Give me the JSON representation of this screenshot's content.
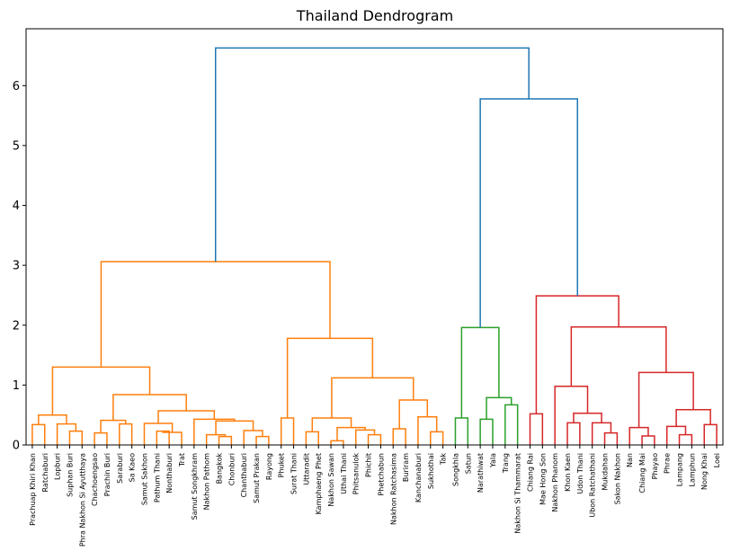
{
  "chart_data": {
    "type": "dendrogram",
    "title": "Thailand Dendrogram",
    "xlabel": "",
    "ylabel": "",
    "ylim": [
      0,
      6.95
    ],
    "yticks": [
      0,
      1,
      2,
      3,
      4,
      5,
      6
    ],
    "grid": false,
    "colors": {
      "above_threshold": "#1f77b4",
      "orange": "#ff7f0e",
      "green": "#2ca02c",
      "red": "#d62728"
    },
    "leaves": [
      "Prachuap Khiri Khan",
      "Ratchaburi",
      "Lopburi",
      "Suphan Buri",
      "Phra Nakhon Si Ayutthaya",
      "Chachoengsao",
      "Prachin Buri",
      "Saraburi",
      "Sa Kaeo",
      "Samut Sakhon",
      "Pathum Thani",
      "Nonthaburi",
      "Trat",
      "Samut Songkhram",
      "Nakhon Pathom",
      "Bangkok",
      "Chonburi",
      "Chanthaburi",
      "Samut Prakan",
      "Rayong",
      "Phuket",
      "Surat Thani",
      "Uttaradit",
      "Kamphaeng Phet",
      "Nakhon Sawan",
      "Uthai Thani",
      "Phitsanulok",
      "Phichit",
      "Phetchabun",
      "Nakhon Ratchasima",
      "Buriram",
      "Kanchanaburi",
      "Sukhothai",
      "Tak",
      "Songkhla",
      "Satun",
      "Narathiwat",
      "Yala",
      "Trang",
      "Nakhon Si Thammarat",
      "Chiang Rai",
      "Mae Hong Son",
      "Nakhon Phanom",
      "Khon Kaen",
      "Udon Thani",
      "Ubon Ratchathani",
      "Mukdahan",
      "Sakon Nakhon",
      "Nan",
      "Chiang Mai",
      "Phayao",
      "Phrae",
      "Lampang",
      "Lamphun",
      "Nong Khai",
      "Loei"
    ],
    "merges": [
      {
        "a": "L0",
        "b": "L1",
        "h": 0.34,
        "color": "orange"
      },
      {
        "a": "L3",
        "b": "L4",
        "h": 0.23,
        "color": "orange"
      },
      {
        "a": "L2",
        "b": "M1",
        "h": 0.35,
        "color": "orange"
      },
      {
        "a": "M0",
        "b": "M2",
        "h": 0.5,
        "color": "orange"
      },
      {
        "a": "L5",
        "b": "L6",
        "h": 0.2,
        "color": "orange"
      },
      {
        "a": "L7",
        "b": "L8",
        "h": 0.35,
        "color": "orange"
      },
      {
        "a": "M4",
        "b": "M5",
        "h": 0.41,
        "color": "orange"
      },
      {
        "a": "L10",
        "b": "L11",
        "h": 0.23,
        "color": "orange"
      },
      {
        "a": "M7",
        "b": "L12",
        "h": 0.21,
        "color": "orange"
      },
      {
        "a": "L9",
        "b": "M8",
        "h": 0.36,
        "color": "orange"
      },
      {
        "a": "L15",
        "b": "L16",
        "h": 0.14,
        "color": "orange"
      },
      {
        "a": "L14",
        "b": "M10",
        "h": 0.17,
        "color": "orange"
      },
      {
        "a": "L18",
        "b": "L19",
        "h": 0.14,
        "color": "orange"
      },
      {
        "a": "L17",
        "b": "M12",
        "h": 0.24,
        "color": "orange"
      },
      {
        "a": "M11",
        "b": "M13",
        "h": 0.4,
        "color": "orange"
      },
      {
        "a": "L13",
        "b": "M14",
        "h": 0.43,
        "color": "orange"
      },
      {
        "a": "M9",
        "b": "M15",
        "h": 0.57,
        "color": "orange"
      },
      {
        "a": "M6",
        "b": "M16",
        "h": 0.84,
        "color": "orange"
      },
      {
        "a": "M3",
        "b": "M17",
        "h": 1.3,
        "color": "orange"
      },
      {
        "a": "L20",
        "b": "L21",
        "h": 0.45,
        "color": "orange"
      },
      {
        "a": "L24",
        "b": "L25",
        "h": 0.07,
        "color": "orange"
      },
      {
        "a": "L27",
        "b": "L28",
        "h": 0.17,
        "color": "orange"
      },
      {
        "a": "L26",
        "b": "M21",
        "h": 0.25,
        "color": "orange"
      },
      {
        "a": "M20",
        "b": "M22",
        "h": 0.29,
        "color": "orange"
      },
      {
        "a": "L22",
        "b": "L23",
        "h": 0.22,
        "color": "orange"
      },
      {
        "a": "M24",
        "b": "M23",
        "h": 0.45,
        "color": "orange"
      },
      {
        "a": "L32",
        "b": "L33",
        "h": 0.22,
        "color": "orange"
      },
      {
        "a": "L31",
        "b": "M26",
        "h": 0.47,
        "color": "orange"
      },
      {
        "a": "L29",
        "b": "L30",
        "h": 0.27,
        "color": "orange"
      },
      {
        "a": "M28",
        "b": "M27",
        "h": 0.75,
        "color": "orange"
      },
      {
        "a": "M25",
        "b": "M29",
        "h": 1.12,
        "color": "orange"
      },
      {
        "a": "M19",
        "b": "M30",
        "h": 1.78,
        "color": "orange"
      },
      {
        "a": "M18",
        "b": "M31",
        "h": 3.06,
        "color": "orange"
      },
      {
        "a": "L34",
        "b": "L35",
        "h": 0.45,
        "color": "green"
      },
      {
        "a": "L36",
        "b": "L37",
        "h": 0.43,
        "color": "green"
      },
      {
        "a": "L38",
        "b": "L39",
        "h": 0.67,
        "color": "green"
      },
      {
        "a": "M34",
        "b": "M35",
        "h": 0.79,
        "color": "green"
      },
      {
        "a": "M33",
        "b": "M36",
        "h": 1.96,
        "color": "green"
      },
      {
        "a": "L40",
        "b": "L41",
        "h": 0.52,
        "color": "red"
      },
      {
        "a": "L43",
        "b": "L44",
        "h": 0.37,
        "color": "red"
      },
      {
        "a": "L46",
        "b": "L47",
        "h": 0.2,
        "color": "red"
      },
      {
        "a": "L45",
        "b": "M40",
        "h": 0.37,
        "color": "red"
      },
      {
        "a": "M39",
        "b": "M41",
        "h": 0.53,
        "color": "red"
      },
      {
        "a": "L42",
        "b": "M42",
        "h": 0.98,
        "color": "red"
      },
      {
        "a": "L49",
        "b": "L50",
        "h": 0.15,
        "color": "red"
      },
      {
        "a": "L48",
        "b": "M44",
        "h": 0.29,
        "color": "red"
      },
      {
        "a": "L52",
        "b": "L53",
        "h": 0.17,
        "color": "red"
      },
      {
        "a": "L51",
        "b": "M46",
        "h": 0.31,
        "color": "red"
      },
      {
        "a": "L54",
        "b": "L55",
        "h": 0.34,
        "color": "red"
      },
      {
        "a": "M47",
        "b": "M48",
        "h": 0.59,
        "color": "red"
      },
      {
        "a": "M45",
        "b": "M49",
        "h": 1.21,
        "color": "red"
      },
      {
        "a": "M43",
        "b": "M50",
        "h": 1.97,
        "color": "red"
      },
      {
        "a": "M38",
        "b": "M51",
        "h": 2.49,
        "color": "red"
      },
      {
        "a": "M37",
        "b": "M52",
        "h": 5.78,
        "color": "above_threshold"
      },
      {
        "a": "M32",
        "b": "M53",
        "h": 6.63,
        "color": "above_threshold"
      }
    ]
  }
}
